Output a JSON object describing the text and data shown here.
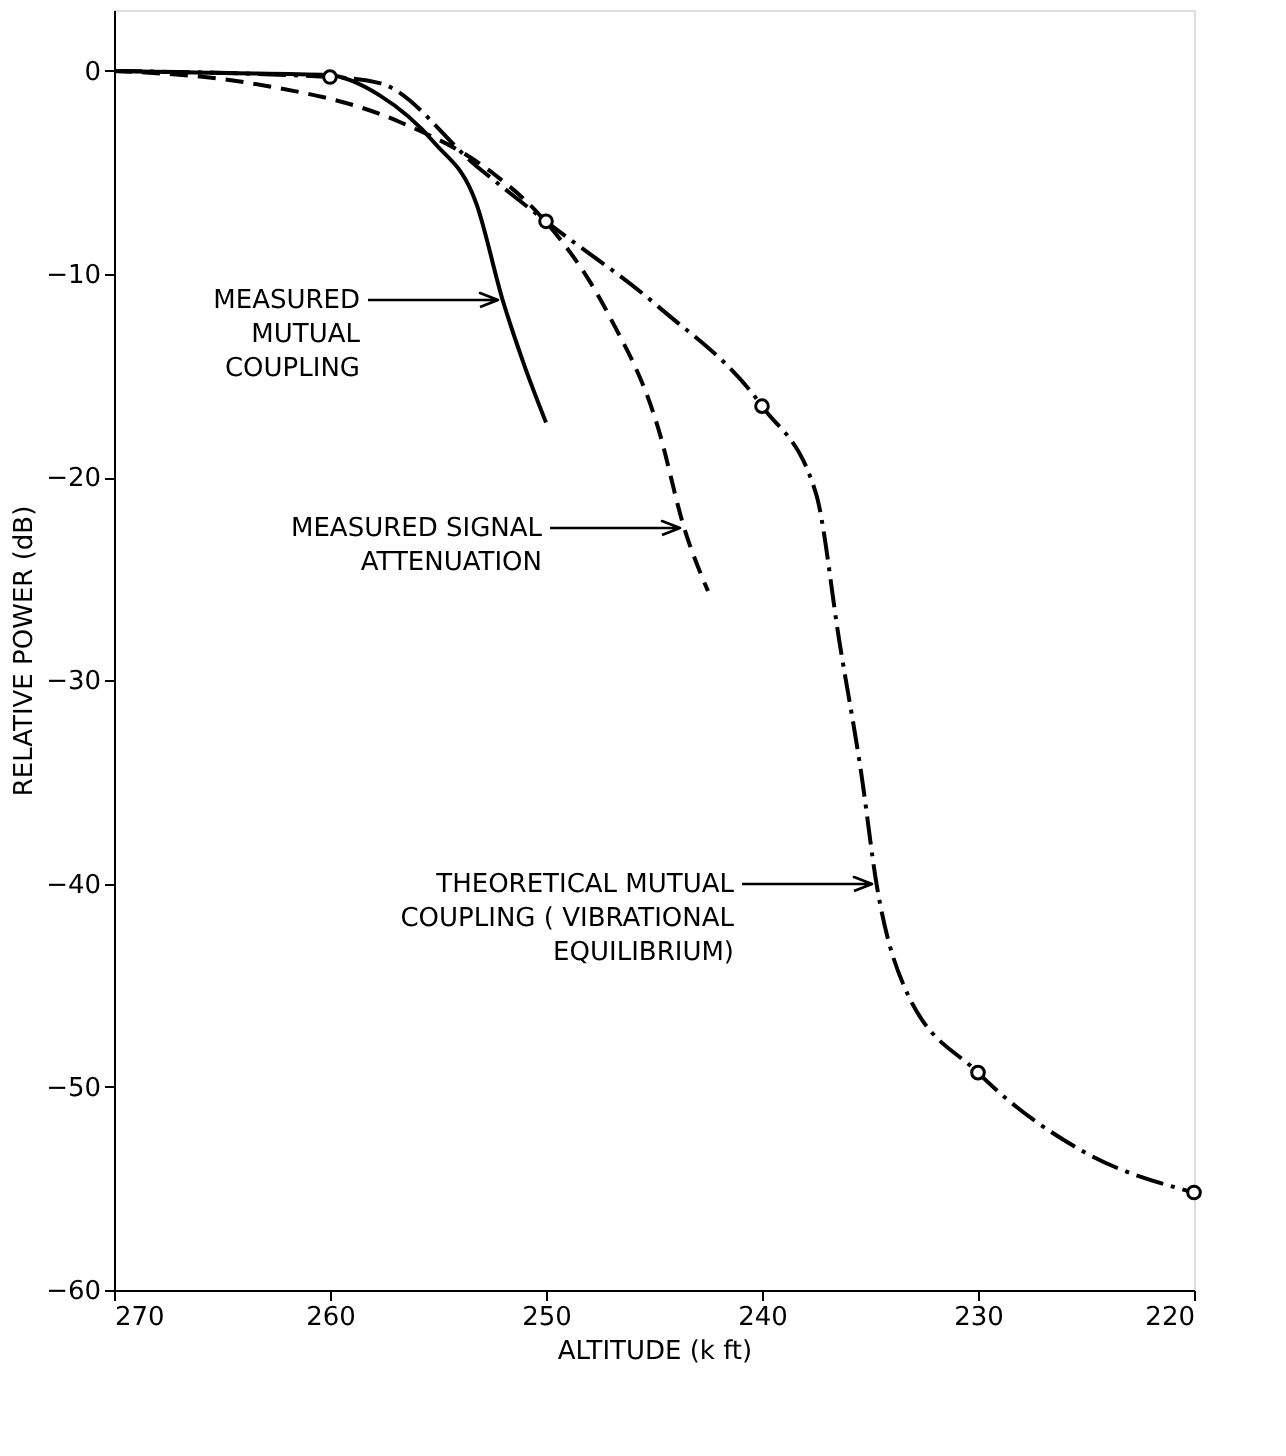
{
  "chart_data": {
    "type": "line",
    "xlabel": "ALTITUDE (k ft)",
    "ylabel": "RELATIVE POWER (dB)",
    "xlim": [
      270,
      220
    ],
    "xticks": [
      270,
      260,
      250,
      240,
      230,
      220
    ],
    "ylim": [
      -60,
      3
    ],
    "yticks": [
      0,
      -10,
      -20,
      -30,
      -40,
      -50,
      -60
    ],
    "grid": false,
    "marker": "none",
    "series": [
      {
        "color": "#000000",
        "line_style": "solid",
        "x": [
          270,
          265,
          260.1,
          257.7,
          255.2,
          253.2,
          252.0,
          251.0,
          250.0
        ],
        "values": [
          0,
          -0.1,
          -0.2,
          -1.2,
          -3.5,
          -6.6,
          -11.3,
          -14.5,
          -17.3
        ]
      },
      {
        "color": "#000000",
        "line_style": "dashed",
        "x": [
          270,
          263.7,
          256.8,
          252.5,
          250.2,
          247.1,
          244.8,
          243.6,
          242.5
        ],
        "values": [
          0,
          -0.6,
          -2.5,
          -5.0,
          -7.2,
          -12.0,
          -17.6,
          -22.5,
          -25.6
        ]
      },
      {
        "color": "#000000",
        "line_style": "dashdot",
        "x": [
          270,
          260,
          257.7,
          253.2,
          250,
          244.8,
          240,
          237.5,
          236.4,
          235.4,
          234.7,
          233.4,
          230,
          225.1,
          220
        ],
        "values": [
          0,
          -0.3,
          -0.6,
          -4.7,
          -7.4,
          -11.6,
          -16.5,
          -20.8,
          -28.2,
          -34.6,
          -40.0,
          -45.1,
          -49.3,
          -53.2,
          -55.2
        ]
      },
      {
        "type": "scatter",
        "color": "#000000",
        "marker": "circle",
        "x": [
          260,
          250,
          240,
          230,
          220
        ],
        "values": [
          -0.3,
          -7.4,
          -16.5,
          -49.3,
          -55.2
        ]
      }
    ],
    "annotations": [
      "MEASURED\nMUTUAL\nCOUPLING",
      "MEASURED SIGNAL\nATTENUATION",
      "THEORETICAL MUTUAL\nCOUPLING ( VIBRATIONAL\nEQUILIBRIUM)"
    ]
  }
}
